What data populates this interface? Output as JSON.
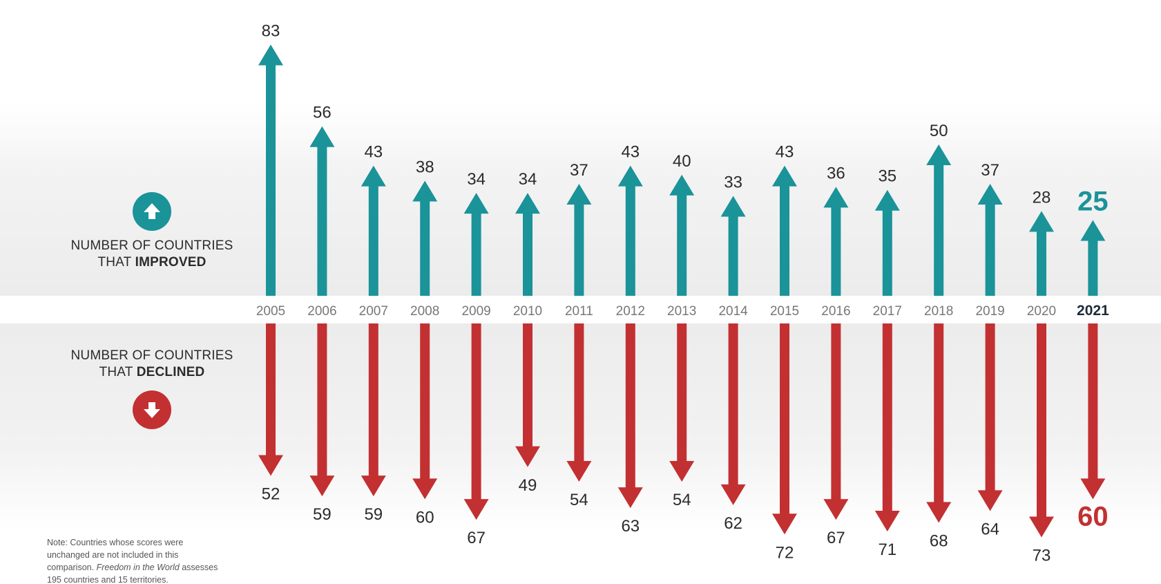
{
  "legend": {
    "improved_line1": "NUMBER OF COUNTRIES",
    "improved_line2_prefix": "THAT ",
    "improved_line2_bold": "IMPROVED",
    "declined_line1": "NUMBER OF COUNTRIES",
    "declined_line2_prefix": "THAT ",
    "declined_line2_bold": "DECLINED",
    "improved_icon": "up-arrow-circle-icon",
    "declined_icon": "down-arrow-circle-icon"
  },
  "note": {
    "part1": "Note: Countries whose scores were unchanged are not included in this comparison. ",
    "italic": "Freedom in the World",
    "part2": " assesses 195 countries and 15 territories."
  },
  "colors": {
    "improved": "#1a9399",
    "declined": "#c33032",
    "year_label": "#777777",
    "highlight_year": "#1d2b3a",
    "value_label": "#2b2b2b"
  },
  "chart_data": {
    "type": "bar",
    "categories": [
      "2005",
      "2006",
      "2007",
      "2008",
      "2009",
      "2010",
      "2011",
      "2012",
      "2013",
      "2014",
      "2015",
      "2016",
      "2017",
      "2018",
      "2019",
      "2020",
      "2021"
    ],
    "series": [
      {
        "name": "NUMBER OF COUNTRIES THAT IMPROVED",
        "values": [
          83,
          56,
          43,
          38,
          34,
          34,
          37,
          43,
          40,
          33,
          43,
          36,
          35,
          50,
          37,
          28,
          25
        ]
      },
      {
        "name": "NUMBER OF COUNTRIES THAT DECLINED",
        "values": [
          52,
          59,
          59,
          60,
          67,
          49,
          54,
          63,
          54,
          62,
          72,
          67,
          71,
          68,
          64,
          73,
          60
        ]
      }
    ],
    "highlight_category": "2021",
    "grid": false
  }
}
